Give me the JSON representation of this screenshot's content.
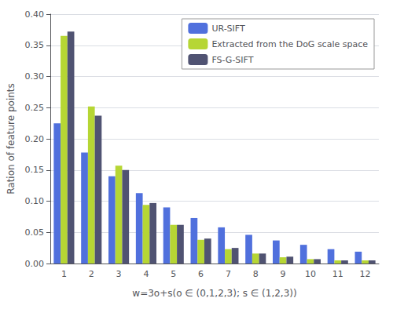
{
  "chart_data": {
    "type": "bar",
    "xlabel": "w=3o+s(o ∈ (0,1,2,3); s ∈ (1,2,3))",
    "ylabel": "Ration of feature points",
    "categories": [
      1,
      2,
      3,
      4,
      5,
      6,
      7,
      8,
      9,
      10,
      11,
      12
    ],
    "series": [
      {
        "name": "UR-SIFT",
        "values": [
          0.225,
          0.178,
          0.14,
          0.113,
          0.09,
          0.073,
          0.058,
          0.046,
          0.037,
          0.03,
          0.023,
          0.019
        ]
      },
      {
        "name": "Extracted from the DoG scale space",
        "values": [
          0.365,
          0.252,
          0.157,
          0.094,
          0.062,
          0.038,
          0.023,
          0.016,
          0.01,
          0.007,
          0.005,
          0.005
        ]
      },
      {
        "name": "FS-G-SIFT",
        "values": [
          0.372,
          0.237,
          0.15,
          0.097,
          0.062,
          0.04,
          0.025,
          0.016,
          0.011,
          0.007,
          0.005,
          0.005
        ]
      }
    ],
    "ylim": [
      0.0,
      0.4
    ],
    "yticks": [
      {
        "value": 0.0,
        "label": "0.00"
      },
      0.05,
      {
        "value": 0.1,
        "label": "0.10"
      },
      0.15,
      {
        "value": 0.2,
        "label": "0.20"
      },
      0.25,
      {
        "value": 0.3,
        "label": "0.30"
      },
      0.35,
      {
        "value": 0.4,
        "label": "0.40"
      }
    ],
    "grid": true,
    "legend": "upper right"
  }
}
